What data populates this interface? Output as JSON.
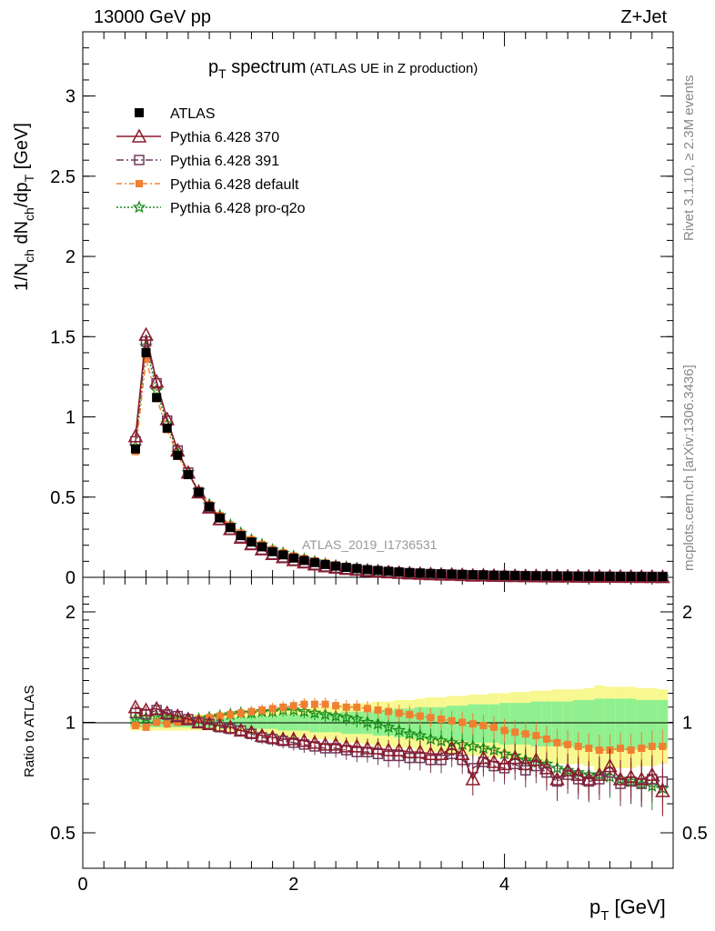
{
  "header": {
    "left": "13000 GeV pp",
    "right": "Z+Jet"
  },
  "side_text": {
    "rivet": "Rivet 3.1.10, ≥ 2.3M events",
    "mcplots": "mcplots.cern.ch [arXiv:1306.3436]"
  },
  "analysis_id": "ATLAS_2019_I1736531",
  "colors": {
    "atlas": "#000000",
    "p370": "#8b1a2b",
    "p391": "#6e3b5e",
    "pdefault": "#f08030",
    "proq2o": "#1a8c1a",
    "band_inner": "#90f090",
    "band_outer": "#f8f890"
  },
  "chart_data": [
    {
      "type": "line",
      "title_main": "p",
      "title_sub": "T",
      "title_rest": " spectrum",
      "title_paren": "(ATLAS UE in Z production)",
      "ylabel": {
        "a": "1/N",
        "a_sub": "ch",
        "b": " dN",
        "b_sub": "ch",
        "c": "/dp",
        "c_sub": "T",
        "d": " [GeV]"
      },
      "ylim": [
        0,
        3.4
      ],
      "xlim": [
        0,
        5.6
      ],
      "yticks": [
        "0",
        "0.5",
        "1",
        "1.5",
        "2",
        "2.5",
        "3"
      ],
      "legend": [
        "ATLAS",
        "Pythia 6.428 370",
        "Pythia 6.428 391",
        "Pythia 6.428 default",
        "Pythia 6.428 pro-q2o"
      ],
      "x": [
        0.5,
        0.6,
        0.7,
        0.8,
        0.9,
        1.0,
        1.1,
        1.2,
        1.3,
        1.4,
        1.5,
        1.6,
        1.7,
        1.8,
        1.9,
        2.0,
        2.1,
        2.2,
        2.3,
        2.4,
        2.5,
        2.6,
        2.7,
        2.8,
        2.9,
        3.0,
        3.1,
        3.2,
        3.3,
        3.4,
        3.5,
        3.6,
        3.7,
        3.8,
        3.9,
        4.0,
        4.1,
        4.2,
        4.3,
        4.4,
        4.5,
        4.6,
        4.7,
        4.8,
        4.9,
        5.0,
        5.1,
        5.2,
        5.3,
        5.4,
        5.5
      ],
      "atlas": [
        0.8,
        1.4,
        1.12,
        0.93,
        0.76,
        0.64,
        0.53,
        0.44,
        0.37,
        0.31,
        0.26,
        0.22,
        0.19,
        0.16,
        0.14,
        0.12,
        0.105,
        0.092,
        0.08,
        0.07,
        0.062,
        0.055,
        0.048,
        0.043,
        0.038,
        0.034,
        0.03,
        0.027,
        0.024,
        0.022,
        0.02,
        0.018,
        0.016,
        0.015,
        0.013,
        0.012,
        0.011,
        0.01,
        0.009,
        0.0085,
        0.008,
        0.0075,
        0.007,
        0.0065,
        0.006,
        0.0055,
        0.005,
        0.0047,
        0.0044,
        0.0041,
        0.0038
      ]
    },
    {
      "type": "line",
      "ylabel": "Ratio to ATLAS",
      "xlabel_main": "p",
      "xlabel_sub": "T",
      "xlabel_rest": " [GeV]",
      "ylim": [
        0.35,
        2.3
      ],
      "xlim": [
        0,
        5.6
      ],
      "yticks": [
        "0.5",
        "1",
        "2"
      ],
      "xticks": [
        "0",
        "2",
        "4"
      ],
      "band_inner": [
        0.03,
        0.03,
        0.03,
        0.03,
        0.03,
        0.03,
        0.03,
        0.03,
        0.03,
        0.03,
        0.03,
        0.04,
        0.04,
        0.04,
        0.05,
        0.05,
        0.05,
        0.06,
        0.06,
        0.06,
        0.07,
        0.07,
        0.07,
        0.08,
        0.08,
        0.09,
        0.09,
        0.1,
        0.1,
        0.1,
        0.11,
        0.11,
        0.12,
        0.12,
        0.12,
        0.13,
        0.13,
        0.13,
        0.14,
        0.14,
        0.14,
        0.14,
        0.15,
        0.15,
        0.16,
        0.16,
        0.16,
        0.16,
        0.15,
        0.15,
        0.15
      ],
      "band_outer": [
        0.05,
        0.05,
        0.05,
        0.05,
        0.05,
        0.05,
        0.05,
        0.05,
        0.06,
        0.06,
        0.06,
        0.07,
        0.07,
        0.08,
        0.08,
        0.09,
        0.09,
        0.1,
        0.1,
        0.11,
        0.12,
        0.12,
        0.13,
        0.14,
        0.14,
        0.15,
        0.15,
        0.16,
        0.17,
        0.17,
        0.18,
        0.18,
        0.19,
        0.19,
        0.2,
        0.2,
        0.21,
        0.21,
        0.22,
        0.22,
        0.23,
        0.23,
        0.23,
        0.24,
        0.26,
        0.25,
        0.25,
        0.25,
        0.24,
        0.24,
        0.23
      ],
      "series": [
        {
          "name": "Pythia 6.428 370",
          "values": [
            1.1,
            1.08,
            1.09,
            1.06,
            1.04,
            1.02,
            1.0,
            0.99,
            0.98,
            0.97,
            0.95,
            0.94,
            0.92,
            0.91,
            0.9,
            0.9,
            0.89,
            0.88,
            0.87,
            0.87,
            0.86,
            0.86,
            0.85,
            0.85,
            0.84,
            0.84,
            0.83,
            0.83,
            0.82,
            0.82,
            0.85,
            0.82,
            0.7,
            0.8,
            0.78,
            0.77,
            0.8,
            0.77,
            0.79,
            0.75,
            0.7,
            0.74,
            0.72,
            0.7,
            0.72,
            0.76,
            0.7,
            0.71,
            0.7,
            0.72,
            0.65
          ]
        },
        {
          "name": "Pythia 6.428 391",
          "values": [
            1.06,
            1.05,
            1.08,
            1.05,
            1.04,
            1.02,
            1.0,
            0.99,
            0.97,
            0.96,
            0.95,
            0.93,
            0.91,
            0.9,
            0.89,
            0.88,
            0.87,
            0.86,
            0.85,
            0.85,
            0.84,
            0.83,
            0.83,
            0.82,
            0.81,
            0.81,
            0.8,
            0.8,
            0.79,
            0.79,
            0.82,
            0.79,
            0.75,
            0.78,
            0.76,
            0.75,
            0.77,
            0.74,
            0.76,
            0.73,
            0.69,
            0.72,
            0.7,
            0.69,
            0.7,
            0.73,
            0.68,
            0.69,
            0.68,
            0.7,
            0.69
          ]
        },
        {
          "name": "Pythia 6.428 default",
          "values": [
            0.98,
            0.97,
            1.0,
            0.99,
            1.0,
            1.01,
            1.02,
            1.03,
            1.04,
            1.05,
            1.06,
            1.07,
            1.08,
            1.09,
            1.1,
            1.11,
            1.12,
            1.12,
            1.12,
            1.11,
            1.1,
            1.1,
            1.09,
            1.08,
            1.07,
            1.06,
            1.05,
            1.04,
            1.03,
            1.02,
            1.01,
            1.0,
            0.99,
            0.98,
            0.97,
            0.95,
            0.94,
            0.93,
            0.92,
            0.9,
            0.88,
            0.87,
            0.86,
            0.85,
            0.84,
            0.84,
            0.85,
            0.84,
            0.85,
            0.86,
            0.86
          ]
        },
        {
          "name": "Pythia 6.428 pro-q2o",
          "values": [
            1.02,
            1.03,
            1.04,
            1.03,
            1.02,
            1.02,
            1.02,
            1.03,
            1.04,
            1.05,
            1.06,
            1.06,
            1.07,
            1.07,
            1.08,
            1.08,
            1.07,
            1.06,
            1.05,
            1.04,
            1.03,
            1.02,
            1.0,
            0.99,
            0.97,
            0.95,
            0.93,
            0.92,
            0.9,
            0.89,
            0.88,
            0.87,
            0.86,
            0.85,
            0.84,
            0.82,
            0.81,
            0.79,
            0.78,
            0.77,
            0.75,
            0.74,
            0.73,
            0.72,
            0.72,
            0.71,
            0.7,
            0.69,
            0.68,
            0.67,
            0.66
          ]
        }
      ]
    }
  ]
}
